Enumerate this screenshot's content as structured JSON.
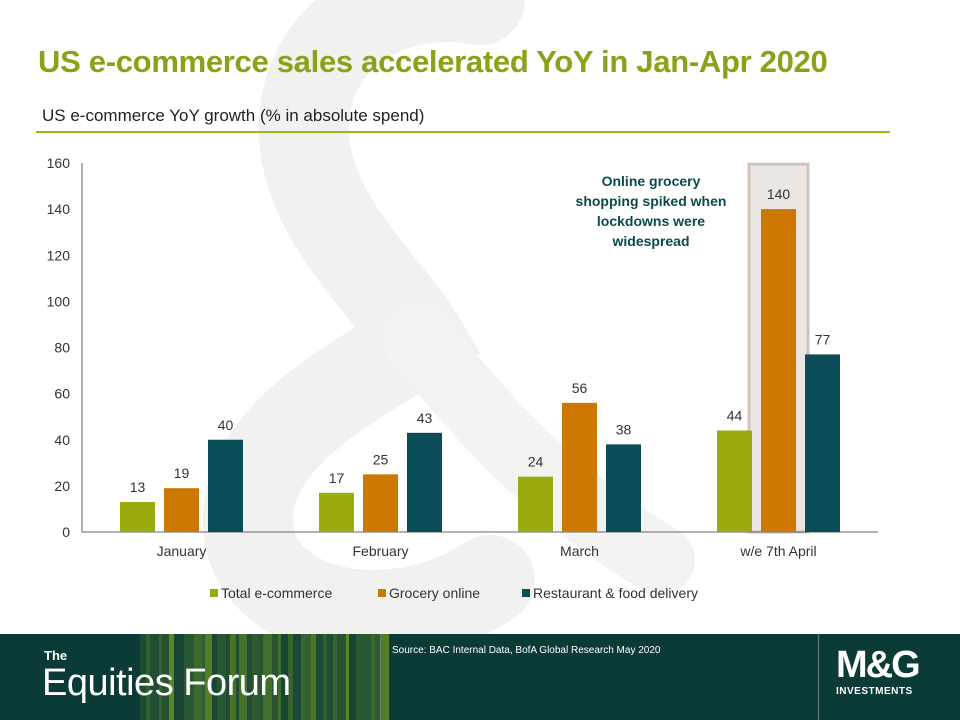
{
  "slide": {
    "title": "US e-commerce sales accelerated YoY in Jan-Apr 2020",
    "subtitle": "US e-commerce YoY growth (% in absolute spend)"
  },
  "chart_data": {
    "type": "bar",
    "categories": [
      "January",
      "February",
      "March",
      "w/e 7th April"
    ],
    "series": [
      {
        "name": "Total e-commerce",
        "values": [
          13,
          17,
          24,
          44
        ],
        "color": "#9aab0d"
      },
      {
        "name": "Grocery online",
        "values": [
          19,
          25,
          56,
          140
        ],
        "color": "#cd7800"
      },
      {
        "name": "Restaurant & food delivery",
        "values": [
          40,
          43,
          38,
          77
        ],
        "color": "#0a4c57"
      }
    ],
    "ylim": [
      0,
      160
    ],
    "yticks": [
      0,
      20,
      40,
      60,
      80,
      100,
      120,
      140,
      160
    ],
    "grid": false,
    "legend_position": "bottom",
    "highlight_category": "w/e 7th April",
    "annotation": {
      "lines": [
        "Online grocery",
        "shopping spiked when",
        "lockdowns were",
        "widespread"
      ],
      "color": "#0b4a4c"
    }
  },
  "footer": {
    "brand_small": "The",
    "brand_large": "Equities Forum",
    "source": "Source: BAC Internal Data, BofA Global Research May 2020",
    "logo_mark": "M&G",
    "logo_sub": "INVESTMENTS"
  },
  "colors": {
    "title": "#8aa21a",
    "footer_bg": "#0b3b36",
    "axis": "#666666",
    "label": "#333333"
  }
}
